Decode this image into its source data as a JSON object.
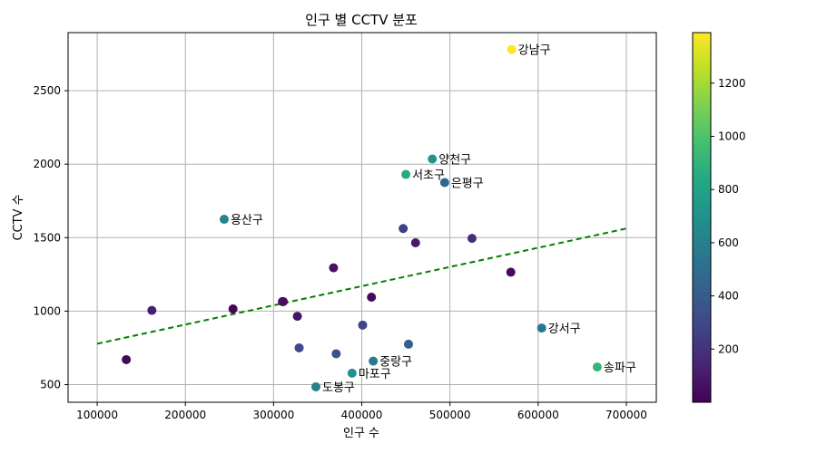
{
  "chart_data": {
    "type": "scatter",
    "title": "인구 별 CCTV 분포",
    "xlabel": "인구 수",
    "ylabel": "CCTV 수",
    "xlim": [
      67000,
      734000
    ],
    "ylim": [
      380,
      2895
    ],
    "xticks": [
      100000,
      200000,
      300000,
      400000,
      500000,
      600000,
      700000
    ],
    "xtick_labels": [
      "100000",
      "200000",
      "300000",
      "400000",
      "500000",
      "600000",
      "700000"
    ],
    "yticks": [
      500,
      1000,
      1500,
      2000,
      2500
    ],
    "ytick_labels": [
      "500",
      "1000",
      "1500",
      "2000",
      "2500"
    ],
    "grid": true,
    "colorbar": {
      "colormap": "viridis",
      "range": [
        0,
        1390
      ],
      "ticks": [
        200,
        400,
        600,
        800,
        1000,
        1200
      ],
      "tick_labels": [
        "200",
        "400",
        "600",
        "800",
        "1000",
        "1200"
      ]
    },
    "trendline": {
      "style": "dashed",
      "color": "#008000",
      "x": [
        100000,
        700000
      ],
      "y": [
        778,
        1562
      ]
    },
    "points": [
      {
        "x": 570000,
        "y": 2780,
        "c": 1390,
        "label": "강남구"
      },
      {
        "x": 480000,
        "y": 2035,
        "c": 700,
        "label": "양천구"
      },
      {
        "x": 450000,
        "y": 1930,
        "c": 850,
        "label": "서초구"
      },
      {
        "x": 494000,
        "y": 1875,
        "c": 450,
        "label": "은평구"
      },
      {
        "x": 244000,
        "y": 1625,
        "c": 630,
        "label": "용산구"
      },
      {
        "x": 604000,
        "y": 885,
        "c": 550,
        "label": "강서구"
      },
      {
        "x": 667000,
        "y": 620,
        "c": 920,
        "label": "송파구"
      },
      {
        "x": 413000,
        "y": 660,
        "c": 560,
        "label": "중랑구"
      },
      {
        "x": 389000,
        "y": 578,
        "c": 700,
        "label": "마포구"
      },
      {
        "x": 348000,
        "y": 485,
        "c": 600,
        "label": "도봉구"
      },
      {
        "x": 447000,
        "y": 1562,
        "c": 260,
        "label": ""
      },
      {
        "x": 461000,
        "y": 1465,
        "c": 100,
        "label": ""
      },
      {
        "x": 525000,
        "y": 1495,
        "c": 180,
        "label": ""
      },
      {
        "x": 569000,
        "y": 1265,
        "c": 40,
        "label": ""
      },
      {
        "x": 368000,
        "y": 1295,
        "c": 70,
        "label": ""
      },
      {
        "x": 411000,
        "y": 1095,
        "c": 30,
        "label": ""
      },
      {
        "x": 311000,
        "y": 1065,
        "c": 10,
        "label": ""
      },
      {
        "x": 310000,
        "y": 1065,
        "c": 50,
        "label": ""
      },
      {
        "x": 254000,
        "y": 1015,
        "c": 20,
        "label": ""
      },
      {
        "x": 162000,
        "y": 1005,
        "c": 120,
        "label": ""
      },
      {
        "x": 327000,
        "y": 965,
        "c": 80,
        "label": ""
      },
      {
        "x": 401000,
        "y": 905,
        "c": 280,
        "label": ""
      },
      {
        "x": 453000,
        "y": 775,
        "c": 420,
        "label": ""
      },
      {
        "x": 329000,
        "y": 750,
        "c": 300,
        "label": ""
      },
      {
        "x": 371000,
        "y": 710,
        "c": 350,
        "label": ""
      },
      {
        "x": 133000,
        "y": 670,
        "c": 30,
        "label": ""
      }
    ]
  }
}
